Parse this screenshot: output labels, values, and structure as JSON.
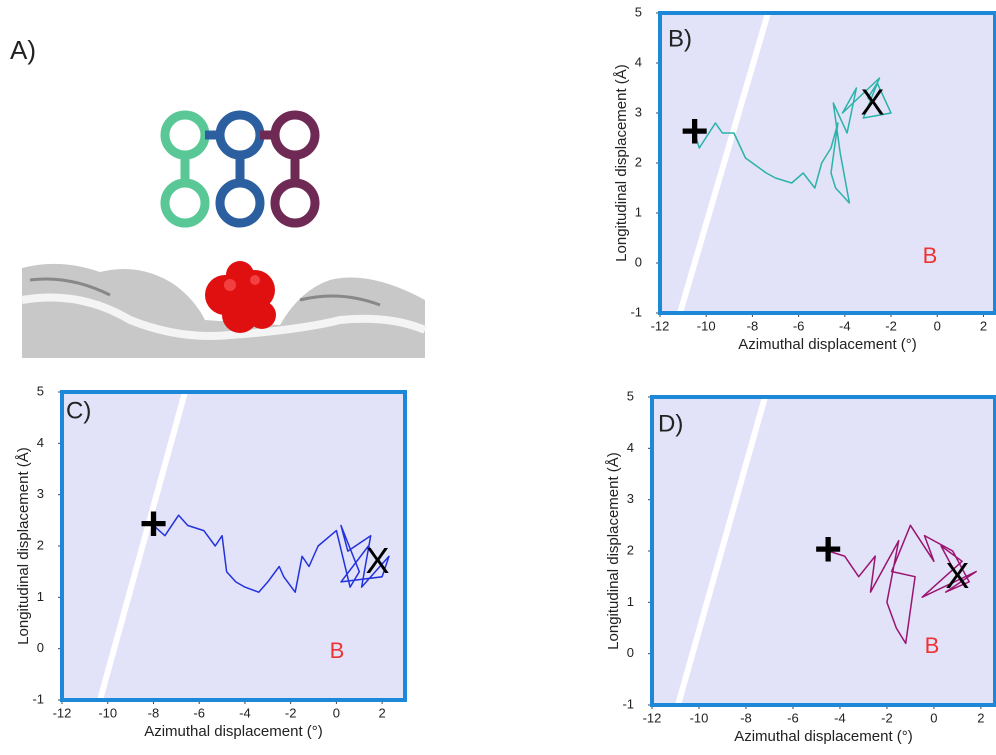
{
  "panel_a": {
    "label": "A)"
  },
  "chart_data": [
    {
      "type": "line",
      "panel_label": "B)",
      "xlabel": "Azimuthal displacement (°)",
      "ylabel": "Longitudinal displacement (Å)",
      "xlim": [
        -12,
        2.5
      ],
      "ylim": [
        -1,
        5
      ],
      "xticks": [
        -12,
        -10,
        -8,
        -6,
        -4,
        -2,
        0,
        2
      ],
      "yticks": [
        -1,
        0,
        1,
        2,
        3,
        4,
        5
      ],
      "color": "#2bb3a8",
      "start_marker": "+",
      "end_marker": "X",
      "annotation": "B",
      "x": [
        -10.5,
        -10.3,
        -9.6,
        -9.3,
        -8.8,
        -8.3,
        -8,
        -7.4,
        -7,
        -6.3,
        -5.8,
        -5.3,
        -5,
        -4.6,
        -4.3,
        -4.6,
        -4.4,
        -3.8,
        -4.2,
        -4.5,
        -3.9,
        -3.5,
        -4.1,
        -2.5,
        -3.2,
        -2,
        -2.6,
        -3,
        -2.8
      ],
      "values": [
        2.6,
        2.3,
        2.8,
        2.6,
        2.6,
        2.1,
        2.0,
        1.8,
        1.7,
        1.6,
        1.8,
        1.5,
        2.0,
        2.3,
        2.8,
        1.8,
        1.5,
        1.2,
        2.2,
        3.2,
        2.6,
        3.5,
        3.0,
        3.7,
        2.9,
        3.0,
        3.6,
        3.3,
        3.2
      ]
    },
    {
      "type": "line",
      "panel_label": "C)",
      "xlabel": "Azimuthal displacement (°)",
      "ylabel": "Longitudinal displacement (Å)",
      "xlim": [
        -12,
        3
      ],
      "ylim": [
        -1,
        5
      ],
      "xticks": [
        -12,
        -10,
        -8,
        -6,
        -4,
        -2,
        0,
        2
      ],
      "yticks": [
        -1,
        0,
        1,
        2,
        3,
        4,
        5
      ],
      "color": "#2233dd",
      "start_marker": "+",
      "end_marker": "X",
      "annotation": "B",
      "x": [
        -8,
        -7.5,
        -6.9,
        -6.5,
        -5.8,
        -5.3,
        -5,
        -4.8,
        -4.4,
        -4,
        -3.4,
        -3,
        -2.5,
        -2.3,
        -1.8,
        -1.5,
        -1.2,
        -0.8,
        0,
        0.6,
        1,
        0.2,
        0.5,
        1.5,
        1.1,
        2.3,
        2,
        0.2,
        1.4,
        1.8
      ],
      "values": [
        2.4,
        2.2,
        2.6,
        2.4,
        2.3,
        2.0,
        2.2,
        1.5,
        1.3,
        1.2,
        1.1,
        1.3,
        1.6,
        1.4,
        1.1,
        1.8,
        1.6,
        2.0,
        2.3,
        1.2,
        1.5,
        2.4,
        1.9,
        2.2,
        1.2,
        1.8,
        1.4,
        1.3,
        2.0,
        1.7
      ]
    },
    {
      "type": "line",
      "panel_label": "D)",
      "xlabel": "Azimuthal displacement (°)",
      "ylabel": "Longitudinal displacement (Å)",
      "xlim": [
        -12,
        2.6
      ],
      "ylim": [
        -1,
        5
      ],
      "xticks": [
        -12,
        -10,
        -8,
        -6,
        -4,
        -2,
        0,
        2
      ],
      "yticks": [
        -1,
        0,
        1,
        2,
        3,
        4,
        5
      ],
      "color": "#9a1470",
      "start_marker": "+",
      "end_marker": "X",
      "annotation": "B",
      "x": [
        -4.5,
        -3.8,
        -3.2,
        -2.5,
        -2.7,
        -1.5,
        -2,
        -1.6,
        -1.2,
        -0.8,
        -1.8,
        -1,
        0,
        -0.4,
        0.8,
        1.5,
        0.5,
        1.8,
        -0.5,
        1.2,
        0.3,
        1
      ],
      "values": [
        2.0,
        1.9,
        1.5,
        1.9,
        1.2,
        2.2,
        1.0,
        0.5,
        0.2,
        1.5,
        1.6,
        2.5,
        1.8,
        2.3,
        2.0,
        1.4,
        1.2,
        1.6,
        1.1,
        1.8,
        2.1,
        1.5
      ]
    }
  ]
}
